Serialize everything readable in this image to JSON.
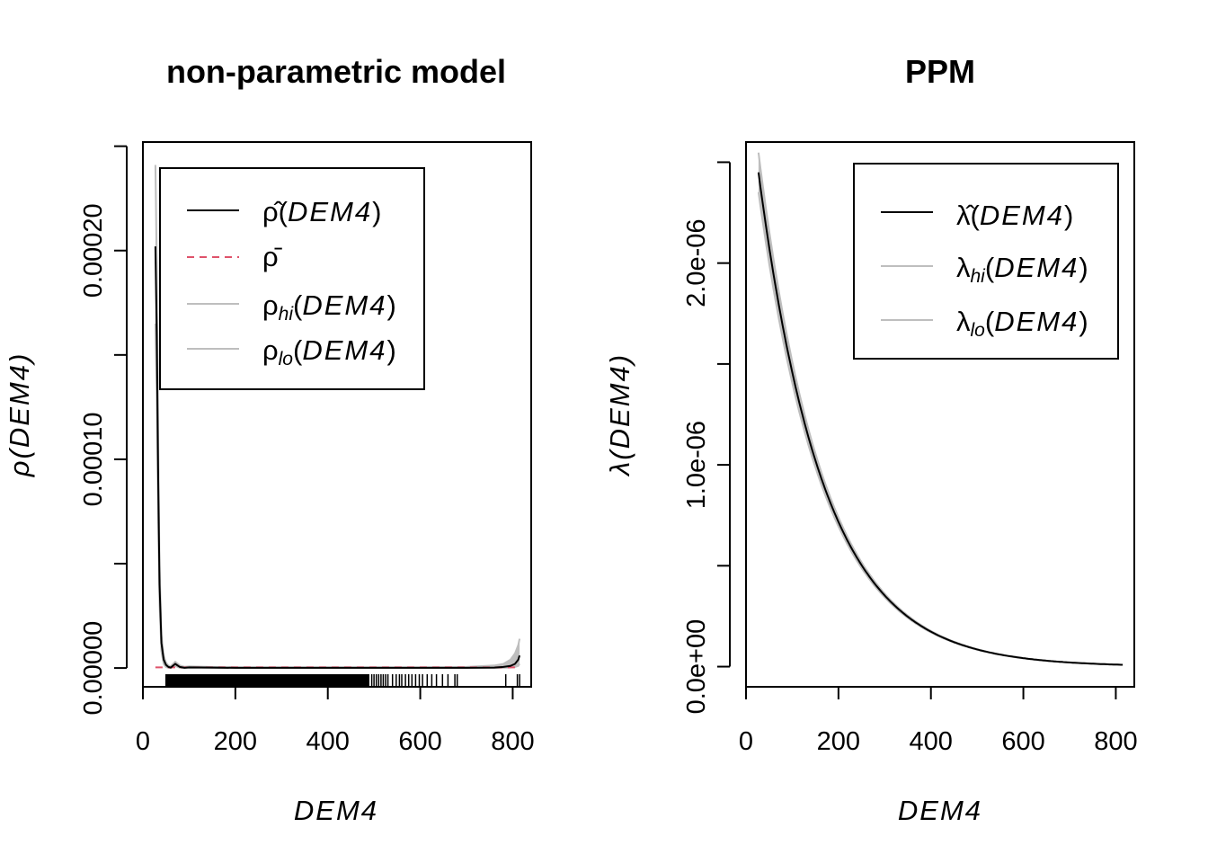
{
  "chart_data": [
    {
      "type": "line",
      "title": "non-parametric model",
      "xlabel": "DEM4",
      "ylabel": "ρ(DEM4)",
      "xlim": [
        0,
        840
      ],
      "ylim": [
        -9e-06,
        0.000252
      ],
      "xticks": [
        "0",
        "200",
        "400",
        "600",
        "800"
      ],
      "yticks": [
        "0.00000",
        "0.00010",
        "0.00020"
      ],
      "ytick_values": [
        0,
        0.0001,
        0.0002
      ],
      "yminor_ticks": [
        5e-05,
        0.00015,
        0.00025
      ],
      "legend_position": "top-right",
      "legend": [
        {
          "label": "ρ̂(DEM4)",
          "color": "#000000",
          "style": "solid"
        },
        {
          "label": "ρ̄",
          "color": "#DF536B",
          "style": "dashed"
        },
        {
          "label": "ρhi(DEM4)",
          "color": "#BEBEBE",
          "style": "solid"
        },
        {
          "label": "ρlo(DEM4)",
          "color": "#BEBEBE",
          "style": "solid"
        }
      ],
      "x": [
        27,
        30,
        33,
        36,
        40,
        45,
        50,
        55,
        60,
        70,
        80,
        90,
        100,
        150,
        200,
        300,
        400,
        500,
        600,
        700,
        760,
        780,
        795,
        805,
        812,
        815
      ],
      "series": [
        {
          "name": "ρ̂(DEM4)",
          "color": "#000000",
          "values": [
            0.000202,
            0.00016,
            9e-05,
            4e-05,
            1.2e-05,
            4e-06,
            1.5e-06,
            5e-07,
            2e-07,
            2e-06,
            5e-07,
            1e-07,
            3e-07,
            2e-07,
            1e-07,
            1e-07,
            1e-07,
            1e-07,
            1e-07,
            1e-07,
            2e-07,
            5e-07,
            1e-06,
            2e-06,
            4e-06,
            6e-06
          ]
        },
        {
          "name": "ρhi(DEM4)",
          "color": "#BEBEBE",
          "values": [
            0.000241,
            0.000195,
            0.00011,
            5e-05,
            1.6e-05,
            6e-06,
            2.5e-06,
            1.2e-06,
            8e-07,
            3e-06,
            1.2e-06,
            6e-07,
            8e-07,
            5e-07,
            4e-07,
            4e-07,
            4e-07,
            4e-07,
            4e-07,
            5e-07,
            1.2e-06,
            2e-06,
            4e-06,
            7e-06,
            1.1e-05,
            1.4e-05
          ]
        },
        {
          "name": "ρlo(DEM4)",
          "color": "#BEBEBE",
          "values": [
            0.000165,
            0.00013,
            7e-05,
            3e-05,
            8e-06,
            2e-06,
            5e-07,
            1e-07,
            0.0,
            1e-06,
            1e-07,
            0.0,
            1e-07,
            0.0,
            0.0,
            0.0,
            0.0,
            0.0,
            0.0,
            0.0,
            0.0,
            1e-07,
            2e-07,
            5e-07,
            1e-06,
            2e-06
          ]
        }
      ],
      "reference_line": {
        "name": "ρ̄",
        "value": 3e-07,
        "color": "#DF536B"
      },
      "rug": {
        "dense_from": 50,
        "dense_to": 490,
        "sparse": [
          495,
          500,
          505,
          510,
          515,
          520,
          525,
          530,
          540,
          548,
          555,
          560,
          568,
          575,
          582,
          590,
          598,
          605,
          615,
          625,
          635,
          648,
          660,
          675,
          680,
          785,
          810,
          815
        ]
      }
    },
    {
      "type": "line",
      "title": "PPM",
      "xlabel": "DEM4",
      "ylabel": "λ(DEM4)",
      "xlim": [
        0,
        840
      ],
      "ylim": [
        -1e-07,
        2.6e-06
      ],
      "xticks": [
        "0",
        "200",
        "400",
        "600",
        "800"
      ],
      "yticks": [
        "0.0e+00",
        "1.0e-06",
        "2.0e-06"
      ],
      "ytick_values": [
        0,
        1e-06,
        2e-06
      ],
      "yminor_ticks": [
        5e-07,
        1.5e-06,
        2.5e-06
      ],
      "legend_position": "top-right",
      "legend": [
        {
          "label": "λ̂(DEM4)",
          "color": "#000000",
          "style": "solid"
        },
        {
          "label": "λhi(DEM4)",
          "color": "#BEBEBE",
          "style": "solid"
        },
        {
          "label": "λlo(DEM4)",
          "color": "#BEBEBE",
          "style": "solid"
        }
      ],
      "curve": {
        "x_start": 27,
        "x_end": 815,
        "amplitude": 2.45e-06,
        "decay": 0.0071
      },
      "band": {
        "hi_factor_start": 1.04,
        "lo_factor_start": 0.96,
        "band_end_factor": 1.0
      }
    }
  ]
}
